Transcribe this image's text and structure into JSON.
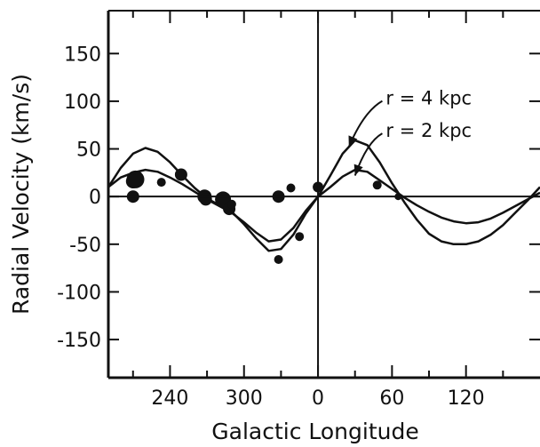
{
  "chart_data": {
    "type": "scatter",
    "title": "",
    "xlabel": "Galactic Longitude",
    "ylabel": "Radial Velocity (km/s)",
    "ylim": [
      -190,
      195
    ],
    "xlim": [
      190,
      180
    ],
    "x_axis_note": "longitude wraps at 360/0",
    "x_ticks": [
      "240",
      "300",
      "0",
      "60",
      "120"
    ],
    "y_ticks": [
      "150",
      "100",
      "50",
      "0",
      "-50",
      "-100",
      "-150"
    ],
    "grid": false,
    "series": [
      {
        "name": "r = 4 kpc",
        "kind": "line",
        "points": [
          [
            190,
            10
          ],
          [
            200,
            30
          ],
          [
            210,
            45
          ],
          [
            220,
            51
          ],
          [
            230,
            47
          ],
          [
            240,
            36
          ],
          [
            250,
            22
          ],
          [
            260,
            9
          ],
          [
            270,
            -2
          ],
          [
            280,
            -9
          ],
          [
            290,
            -16
          ],
          [
            300,
            -29
          ],
          [
            310,
            -44
          ],
          [
            320,
            -57
          ],
          [
            330,
            -55
          ],
          [
            340,
            -40
          ],
          [
            350,
            -18
          ],
          [
            360,
            0
          ],
          [
            10,
            22
          ],
          [
            20,
            45
          ],
          [
            30,
            59
          ],
          [
            40,
            54
          ],
          [
            50,
            36
          ],
          [
            60,
            14
          ],
          [
            70,
            -6
          ],
          [
            80,
            -24
          ],
          [
            90,
            -39
          ],
          [
            100,
            -47
          ],
          [
            110,
            -50
          ],
          [
            120,
            -50
          ],
          [
            130,
            -47
          ],
          [
            140,
            -40
          ],
          [
            150,
            -30
          ],
          [
            160,
            -17
          ],
          [
            170,
            -4
          ],
          [
            180,
            10
          ]
        ]
      },
      {
        "name": "r = 2 kpc",
        "kind": "line",
        "points": [
          [
            190,
            10
          ],
          [
            200,
            20
          ],
          [
            210,
            25
          ],
          [
            220,
            28
          ],
          [
            230,
            26
          ],
          [
            240,
            20
          ],
          [
            250,
            13
          ],
          [
            260,
            5
          ],
          [
            270,
            -3
          ],
          [
            280,
            -10
          ],
          [
            290,
            -17
          ],
          [
            300,
            -27
          ],
          [
            310,
            -38
          ],
          [
            320,
            -47
          ],
          [
            330,
            -45
          ],
          [
            340,
            -33
          ],
          [
            350,
            -15
          ],
          [
            360,
            0
          ],
          [
            10,
            10
          ],
          [
            20,
            21
          ],
          [
            30,
            28
          ],
          [
            40,
            26
          ],
          [
            50,
            17
          ],
          [
            60,
            8
          ],
          [
            70,
            -1
          ],
          [
            80,
            -9
          ],
          [
            90,
            -16
          ],
          [
            100,
            -22
          ],
          [
            110,
            -26
          ],
          [
            120,
            -28
          ],
          [
            130,
            -27
          ],
          [
            140,
            -23
          ],
          [
            150,
            -17
          ],
          [
            160,
            -10
          ],
          [
            170,
            -3
          ],
          [
            180,
            4
          ]
        ]
      },
      {
        "name": "",
        "kind": "points",
        "points": [
          [
            212,
            18,
            10
          ],
          [
            210,
            16,
            8
          ],
          [
            210,
            0,
            7
          ],
          [
            233,
            15,
            5
          ],
          [
            249,
            23,
            7
          ],
          [
            268,
            0,
            8
          ],
          [
            269,
            -3,
            7
          ],
          [
            283,
            -3,
            9
          ],
          [
            288,
            -13,
            7
          ],
          [
            290,
            -8,
            5
          ],
          [
            328,
            0,
            7
          ],
          [
            328,
            -66,
            5
          ],
          [
            338,
            9,
            5
          ],
          [
            345,
            -42,
            5
          ],
          [
            360,
            10,
            6
          ],
          [
            48,
            12,
            5
          ],
          [
            65,
            0,
            4
          ]
        ]
      }
    ],
    "annotations": [
      {
        "text": "r = 4 kpc",
        "x": 55,
        "y": 104,
        "arrow_to": [
          25,
          52
        ]
      },
      {
        "text": "r = 2 kpc",
        "x": 55,
        "y": 70,
        "arrow_to": [
          30,
          22
        ]
      }
    ]
  }
}
